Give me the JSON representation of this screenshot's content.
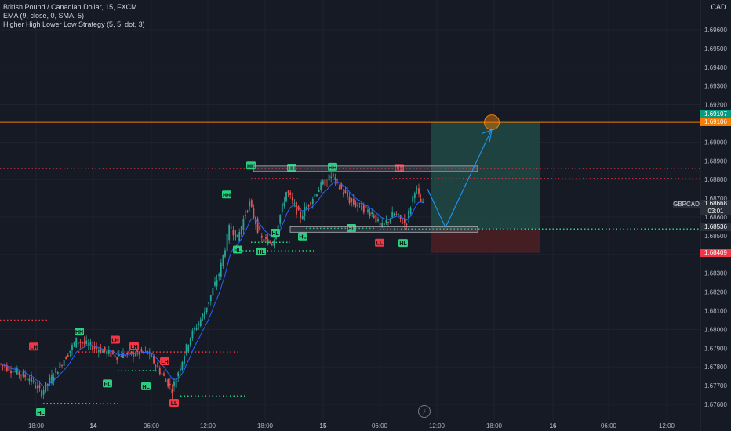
{
  "legend": {
    "symbol_line": "British Pound / Canadian Dollar, 15, FXCM",
    "ema_line": "EMA (9, close, 0, SMA, 5)",
    "strategy_line": "Higher High Lower Low Strategy (5, 5, dot, 3)"
  },
  "currency_badge": "CAD",
  "symbol_label": "GBPCAD",
  "last_price": "1.68668",
  "countdown": "03:01",
  "price_tags": [
    {
      "value": "1.69107",
      "color": "#089981"
    },
    {
      "value": "1.69106",
      "color": "#f57c00"
    },
    {
      "value": "1.68536",
      "color": "#2a2e39"
    },
    {
      "value": "1.68409",
      "color": "#f23645"
    }
  ],
  "colors": {
    "background": "#161a25",
    "up": "#26a69a",
    "down": "#ef5350",
    "ema": "#2962ff",
    "target_zone": "#1e4a45",
    "stop_zone": "#4a1f25",
    "resistance_line": "#f57c00",
    "arrow": "#2196f3"
  },
  "y_axis_ticks": [
    "1.69600",
    "1.69400",
    "1.69200",
    "1.69000",
    "1.68800",
    "1.68600",
    "1.68400",
    "1.68200",
    "1.68000",
    "1.67800",
    "1.67600"
  ],
  "y_axis_minor_ticks": [
    "1.69500",
    "1.69300",
    "1.69100",
    "1.68900",
    "1.68700",
    "1.68500",
    "1.68300",
    "1.68100",
    "1.67900",
    "1.67700"
  ],
  "x_axis_ticks": [
    "18:00",
    "14",
    "06:00",
    "12:00",
    "18:00",
    "15",
    "06:00",
    "12:00",
    "18:00",
    "16",
    "06:00",
    "12:00"
  ],
  "swing_labels": [
    {
      "text": "HH",
      "type": "high",
      "price": 1.6883
    },
    {
      "text": "HH",
      "type": "high",
      "price": 1.68835
    },
    {
      "text": "HH",
      "type": "high",
      "price": 1.6885
    },
    {
      "text": "HH",
      "type": "high",
      "price": 1.68695
    },
    {
      "text": "LH",
      "type": "high",
      "price": 1.6882
    },
    {
      "text": "HL",
      "type": "low",
      "price": 1.6846
    },
    {
      "text": "HL",
      "type": "low",
      "price": 1.6845
    },
    {
      "text": "HL",
      "type": "low",
      "price": 1.6855
    },
    {
      "text": "HL",
      "type": "low",
      "price": 1.6853
    },
    {
      "text": "HL",
      "type": "low",
      "price": 1.68575
    },
    {
      "text": "HL",
      "type": "low",
      "price": 1.68495
    },
    {
      "text": "LL",
      "type": "low",
      "price": 1.68505
    },
    {
      "text": "HH",
      "type": "high",
      "price": 1.67955
    },
    {
      "text": "LH",
      "type": "high",
      "price": 1.6792
    },
    {
      "text": "LH",
      "type": "high",
      "price": 1.67885
    },
    {
      "text": "LH",
      "type": "high",
      "price": 1.67875
    },
    {
      "text": "LH",
      "type": "high",
      "price": 1.67805
    },
    {
      "text": "HL",
      "type": "low",
      "price": 1.67745
    },
    {
      "text": "HL",
      "type": "low",
      "price": 1.6773
    },
    {
      "text": "HL",
      "type": "low",
      "price": 1.676
    },
    {
      "text": "LL",
      "type": "low",
      "price": 1.6765
    }
  ]
}
